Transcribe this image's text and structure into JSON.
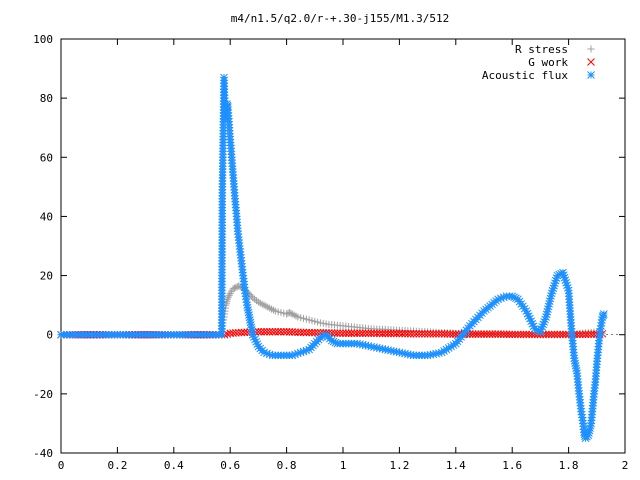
{
  "chart_data": {
    "type": "scatter",
    "title": "m4/n1.5/q2.0/r-+.30-j155/M1.3/512",
    "xlabel": "",
    "ylabel": "",
    "xlim": [
      0,
      2
    ],
    "ylim": [
      -40,
      100
    ],
    "xticks": [
      "0",
      "0.2",
      "0.4",
      "0.6",
      "0.8",
      "1",
      "1.2",
      "1.4",
      "1.6",
      "1.8",
      "2"
    ],
    "yticks": [
      "-40",
      "-20",
      "0",
      "20",
      "40",
      "60",
      "80",
      "100"
    ],
    "grid": false,
    "legend_position": "top-right",
    "series": [
      {
        "name": "R stress",
        "marker": "plus",
        "color": "#a0a0a0",
        "x": [
          0.0,
          0.2,
          0.4,
          0.57,
          0.575,
          0.58,
          0.585,
          0.59,
          0.6,
          0.61,
          0.62,
          0.63,
          0.64,
          0.65,
          0.66,
          0.67,
          0.68,
          0.7,
          0.72,
          0.74,
          0.76,
          0.78,
          0.8,
          0.81,
          0.82,
          0.84,
          0.86,
          0.88,
          0.9,
          0.92,
          0.95,
          1.0,
          1.05,
          1.1,
          1.15,
          1.2,
          1.3,
          1.4,
          1.5,
          1.6,
          1.7,
          1.8,
          1.85,
          1.9,
          1.92
        ],
        "y": [
          0,
          0,
          0,
          0,
          4,
          7,
          10,
          12,
          14,
          15.5,
          16,
          16.5,
          16,
          15.5,
          14.5,
          13.5,
          12.5,
          11,
          10,
          9,
          8,
          7.5,
          7,
          7.5,
          7,
          6,
          5.5,
          5,
          4.5,
          4,
          3.5,
          3,
          2.5,
          2,
          1.8,
          1.5,
          1,
          0.5,
          0.2,
          0.1,
          0,
          0,
          0.5,
          1,
          0.5
        ]
      },
      {
        "name": "G work",
        "marker": "cross",
        "color": "#ff0000",
        "x": [
          0.0,
          0.2,
          0.4,
          0.58,
          0.6,
          0.65,
          0.7,
          0.75,
          0.8,
          0.85,
          0.9,
          0.95,
          1.0,
          1.05,
          1.1,
          1.15,
          1.2,
          1.25,
          1.3,
          1.35,
          1.4,
          1.45,
          1.5,
          1.55,
          1.6,
          1.65,
          1.7,
          1.75,
          1.8,
          1.85,
          1.9,
          1.92
        ],
        "y": [
          0,
          0,
          0,
          0,
          0.5,
          0.8,
          1,
          1,
          1,
          0.8,
          0.7,
          0.6,
          0.5,
          0.5,
          0.5,
          0.4,
          0.4,
          0.3,
          0.3,
          0.3,
          0.2,
          0.2,
          0.2,
          0.2,
          0.1,
          0.1,
          0.1,
          0.1,
          0.1,
          0.1,
          0.2,
          0.3
        ]
      },
      {
        "name": "Acoustic flux",
        "marker": "star",
        "color": "#1e90ff",
        "x": [
          0.0,
          0.1,
          0.2,
          0.3,
          0.4,
          0.5,
          0.57,
          0.572,
          0.578,
          0.583,
          0.588,
          0.592,
          0.597,
          0.602,
          0.607,
          0.612,
          0.617,
          0.622,
          0.627,
          0.632,
          0.637,
          0.642,
          0.647,
          0.652,
          0.66,
          0.67,
          0.68,
          0.7,
          0.72,
          0.75,
          0.78,
          0.8,
          0.82,
          0.85,
          0.88,
          0.9,
          0.92,
          0.94,
          0.96,
          0.98,
          1.0,
          1.02,
          1.05,
          1.1,
          1.15,
          1.2,
          1.25,
          1.3,
          1.35,
          1.4,
          1.45,
          1.5,
          1.55,
          1.58,
          1.6,
          1.62,
          1.65,
          1.68,
          1.7,
          1.72,
          1.74,
          1.76,
          1.78,
          1.8,
          1.81,
          1.82,
          1.83,
          1.835,
          1.84,
          1.845,
          1.85,
          1.855,
          1.86,
          1.87,
          1.88,
          1.885,
          1.89,
          1.895,
          1.9,
          1.905,
          1.91,
          1.915,
          1.92,
          1.925
        ],
        "y": [
          0,
          0,
          0,
          0,
          0,
          0,
          0,
          48,
          87,
          73,
          78,
          77,
          70,
          64,
          58,
          52,
          46,
          41,
          35,
          31,
          27,
          23,
          19,
          15,
          10,
          5,
          0,
          -4,
          -6,
          -7,
          -7,
          -7,
          -7,
          -6,
          -5,
          -3,
          -1,
          0,
          -2,
          -3,
          -3,
          -3,
          -3,
          -4,
          -5,
          -6,
          -7,
          -7,
          -6,
          -3,
          3,
          8,
          12,
          13,
          13,
          12,
          8,
          2,
          1,
          6,
          14,
          20,
          21,
          15,
          2,
          -8,
          -13,
          -18,
          -22,
          -26,
          -29,
          -33,
          -35,
          -34,
          -30,
          -25,
          -20,
          -16,
          -10,
          -5,
          0,
          3,
          6,
          7
        ]
      }
    ]
  }
}
